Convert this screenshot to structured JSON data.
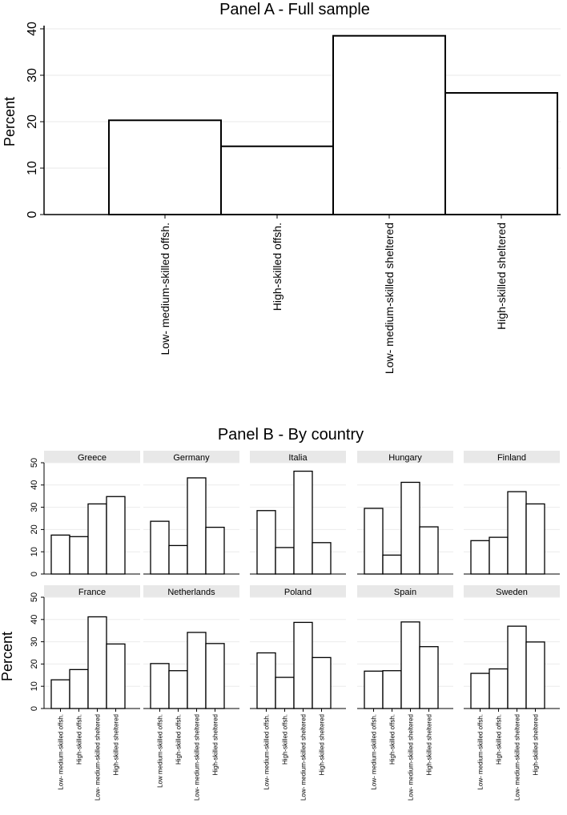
{
  "chart_data": [
    {
      "type": "bar",
      "title": "Panel A - Full sample",
      "ylabel": "Percent",
      "xlabel": "",
      "categories": [
        "Low- medium-skilled offsh.",
        "High-skilled offsh.",
        "Low- medium-skilled sheltered",
        "High-skilled sheltered"
      ],
      "values": [
        20.3,
        14.7,
        38.5,
        26.2
      ],
      "ylim": [
        0,
        40
      ],
      "yticks": [
        0,
        10,
        20,
        30,
        40
      ],
      "grid": true
    },
    {
      "type": "bar",
      "title": "Panel B - By country",
      "ylabel": "Percent",
      "xlabel": "",
      "ylim": [
        0,
        50
      ],
      "yticks": [
        0,
        10,
        20,
        30,
        40,
        50
      ],
      "grid": true,
      "panels": [
        {
          "name": "Greece",
          "values": [
            17.5,
            16.8,
            31.5,
            34.8
          ],
          "categories": [
            "Low- medium-skilled offsh.",
            "High-skilled offsh.",
            "Low- medium-skilled sheltered",
            "High-skilled sheltered"
          ]
        },
        {
          "name": "Germany",
          "values": [
            23.7,
            12.8,
            43.2,
            21.0
          ],
          "categories": [
            "Low- medium-skilled offsh.",
            "High-skilled offsh.",
            "Low- medium-skilled sheltered",
            "High-skilled sheltered"
          ]
        },
        {
          "name": "Italia",
          "values": [
            28.5,
            11.9,
            46.2,
            14.1
          ],
          "categories": [
            "Low- medium-skilled offsh.",
            "High-skilled offsh.",
            "Low- medium-skilled sheltered",
            "High-skilled sheltered"
          ]
        },
        {
          "name": "Hungary",
          "values": [
            29.5,
            8.5,
            41.2,
            21.2
          ],
          "categories": [
            "Low- medium-skilled offsh.",
            "High-skilled offsh.",
            "Low- medium-skilled sheltered",
            "High-skilled sheltered"
          ]
        },
        {
          "name": "Finland",
          "values": [
            15.0,
            16.5,
            37.0,
            31.5
          ],
          "categories": [
            "Low- medium-skilled offsh.",
            "High-skilled offsh.",
            "Low- medium-skilled sheltered",
            "High-skilled sheltered"
          ]
        },
        {
          "name": "France",
          "values": [
            12.9,
            17.5,
            41.2,
            29.0
          ],
          "categories": [
            "Low- medium-skilled offsh.",
            "High-skilled offsh.",
            "Low- medium-skilled sheltered",
            "High-skilled sheltered"
          ]
        },
        {
          "name": "Netherlands",
          "values": [
            20.2,
            17.0,
            34.2,
            29.2
          ],
          "categories": [
            "Low medium-skilled offsh.",
            "High-skilled offsh.",
            "Low- medium-skilled sheltered",
            "High-skilled sheltered"
          ]
        },
        {
          "name": "Poland",
          "values": [
            25.0,
            14.0,
            38.7,
            22.9
          ],
          "categories": [
            "Low- medium-skilled offsh.",
            "High-skilled offsh.",
            "Low- medium-skilled sheltered",
            "High-skilled sheltered"
          ]
        },
        {
          "name": "Spain",
          "values": [
            16.8,
            17.0,
            38.9,
            27.8
          ],
          "categories": [
            "Low- medium-skilled offsh.",
            "High-skilled offsh.",
            "Low- medium-skilled sheltered",
            "High-skilled sheltered"
          ]
        },
        {
          "name": "Sweden",
          "values": [
            15.8,
            17.8,
            37.0,
            29.9
          ],
          "categories": [
            "Low- medium-skilled offsh.",
            "High-skilled offsh.",
            "Low- medium-skilled sheltered",
            "High-skilled sheltered"
          ]
        }
      ]
    }
  ]
}
